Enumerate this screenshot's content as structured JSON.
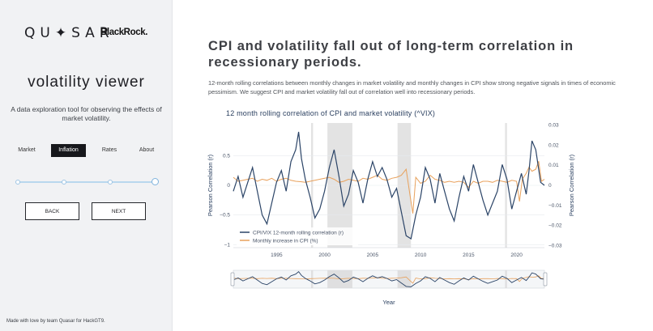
{
  "sidebar": {
    "logo_quasar": "QU✦SAR",
    "logo_blackrock": "BlackRock.",
    "title": "volatility viewer",
    "description": "A data exploration tool for observing the effects of market volatility.",
    "tabs": [
      {
        "label": "Market",
        "active": false
      },
      {
        "label": "Inflation",
        "active": true
      },
      {
        "label": "Rates",
        "active": false
      },
      {
        "label": "About",
        "active": false
      }
    ],
    "slider": {
      "steps": 4,
      "current_step": 4
    },
    "back_label": "BACK",
    "next_label": "NEXT",
    "footer": "Made with love by team Quasar for HackGT9."
  },
  "main": {
    "headline": "CPI and volatility fall out of long-term correlation in recessionary periods.",
    "intro": "12-month rolling correlations between monthly changes in market volatility and monthly changes in CPI show strong negative signals in times of economic pessimism. We suggest CPI and market volatility fall out of correlation well into recessionary periods."
  },
  "colors": {
    "correlation": "#2b4467",
    "cpi": "#e8a15c",
    "recession": "#d9d9d9",
    "axis": "#2a3f5f"
  },
  "chart_data": {
    "type": "line",
    "title": "12 month rolling correlation of CPI and market volatility (^VIX)",
    "xlabel": "Year",
    "ylabel": "Pearson Correlation (r)",
    "y2label": "Pearson Correlation (r)",
    "xlim": [
      1990.5,
      2022.9
    ],
    "ylim": [
      -1.05,
      1.05
    ],
    "y2lim": [
      -0.031,
      0.031
    ],
    "x_ticks": [
      "1995",
      "2000",
      "2005",
      "2010",
      "2015",
      "2020"
    ],
    "y_ticks": [
      "0.5",
      "0",
      "−0.5",
      "−1"
    ],
    "y2_ticks": [
      "0.03",
      "0.02",
      "0.01",
      "0",
      "−0.01",
      "−0.02",
      "−0.03"
    ],
    "recession_shading": [
      [
        1998.6,
        1998.8
      ],
      [
        2000.3,
        2002.9
      ],
      [
        2007.6,
        2009.0
      ],
      [
        2018.8,
        2019.0
      ]
    ],
    "legend": [
      {
        "name": "CPI/VIX 12-month rolling correlation (r)",
        "axis": "left"
      },
      {
        "name": "Monthly increase in CPI (%)",
        "axis": "right"
      }
    ],
    "series": [
      {
        "name": "CPI/VIX 12-month rolling correlation (r)",
        "x": [
          1990.5,
          1991,
          1991.5,
          1992,
          1992.5,
          1993,
          1993.5,
          1994,
          1994.5,
          1995,
          1995.5,
          1996,
          1996.5,
          1997,
          1997.3,
          1997.6,
          1998,
          1998.5,
          1999,
          1999.5,
          2000,
          2000.5,
          2001,
          2001.5,
          2002,
          2002.5,
          2003,
          2003.5,
          2004,
          2004.5,
          2005,
          2005.5,
          2006,
          2006.5,
          2007,
          2007.5,
          2008,
          2008.5,
          2009,
          2009.5,
          2010,
          2010.5,
          2011,
          2011.5,
          2012,
          2012.5,
          2013,
          2013.5,
          2014,
          2014.5,
          2015,
          2015.5,
          2016,
          2016.5,
          2017,
          2017.5,
          2018,
          2018.5,
          2019,
          2019.5,
          2020,
          2020.5,
          2021,
          2021.3,
          2021.6,
          2022,
          2022.5,
          2022.9
        ],
        "values": [
          -0.1,
          0.15,
          -0.2,
          0.05,
          0.3,
          -0.1,
          -0.5,
          -0.65,
          -0.3,
          0.05,
          0.25,
          -0.1,
          0.4,
          0.6,
          0.9,
          0.45,
          0.1,
          -0.2,
          -0.55,
          -0.4,
          -0.1,
          0.3,
          0.6,
          0.15,
          -0.35,
          -0.15,
          0.25,
          0.05,
          -0.3,
          0.1,
          0.4,
          0.15,
          0.3,
          0.1,
          -0.2,
          -0.05,
          -0.45,
          -0.85,
          -0.9,
          -0.5,
          -0.2,
          0.3,
          0.1,
          -0.3,
          0.2,
          -0.1,
          -0.4,
          -0.6,
          -0.2,
          0.15,
          -0.1,
          0.35,
          0.05,
          -0.25,
          -0.5,
          -0.3,
          -0.1,
          0.35,
          0.1,
          -0.4,
          -0.1,
          0.2,
          -0.15,
          0.25,
          0.75,
          0.6,
          0.05,
          0.0
        ]
      },
      {
        "name": "Monthly increase in CPI (%)",
        "x": [
          1990.5,
          1991,
          1991.5,
          1992,
          1992.5,
          1993,
          1993.5,
          1994,
          1994.5,
          1995,
          1995.5,
          1996,
          1996.5,
          1997,
          1997.5,
          1998,
          1998.5,
          1999,
          1999.5,
          2000,
          2000.5,
          2001,
          2001.5,
          2002,
          2002.5,
          2003,
          2003.5,
          2004,
          2004.5,
          2005,
          2005.5,
          2006,
          2006.5,
          2007,
          2007.5,
          2008,
          2008.5,
          2008.9,
          2009.2,
          2009.5,
          2010,
          2010.5,
          2011,
          2011.5,
          2012,
          2012.5,
          2013,
          2013.5,
          2014,
          2014.5,
          2015,
          2015.5,
          2016,
          2016.5,
          2017,
          2017.5,
          2018,
          2018.5,
          2019,
          2019.5,
          2020,
          2020.3,
          2020.6,
          2021,
          2021.3,
          2021.6,
          2022,
          2022.3,
          2022.6,
          2022.9
        ],
        "values": [
          0.004,
          0.002,
          0.0025,
          0.003,
          0.0035,
          0.002,
          0.003,
          0.0025,
          0.0035,
          0.002,
          0.003,
          0.0035,
          0.0025,
          0.002,
          0.0018,
          0.0015,
          0.002,
          0.0025,
          0.003,
          0.0035,
          0.004,
          0.003,
          0.0015,
          0.002,
          0.003,
          0.0025,
          0.002,
          0.0035,
          0.003,
          0.004,
          0.005,
          0.003,
          0.0025,
          0.0035,
          0.004,
          0.005,
          0.008,
          -0.005,
          -0.014,
          0.004,
          0.001,
          0.002,
          0.005,
          0.003,
          0.0025,
          0.0015,
          0.002,
          0.0015,
          0.002,
          0.0015,
          -0.001,
          0.002,
          0.001,
          0.002,
          0.002,
          0.0015,
          0.0025,
          0.002,
          0.0015,
          0.0025,
          0.002,
          -0.008,
          0.003,
          0.006,
          0.009,
          0.007,
          0.008,
          0.012,
          0.002,
          0.003
        ]
      }
    ]
  }
}
